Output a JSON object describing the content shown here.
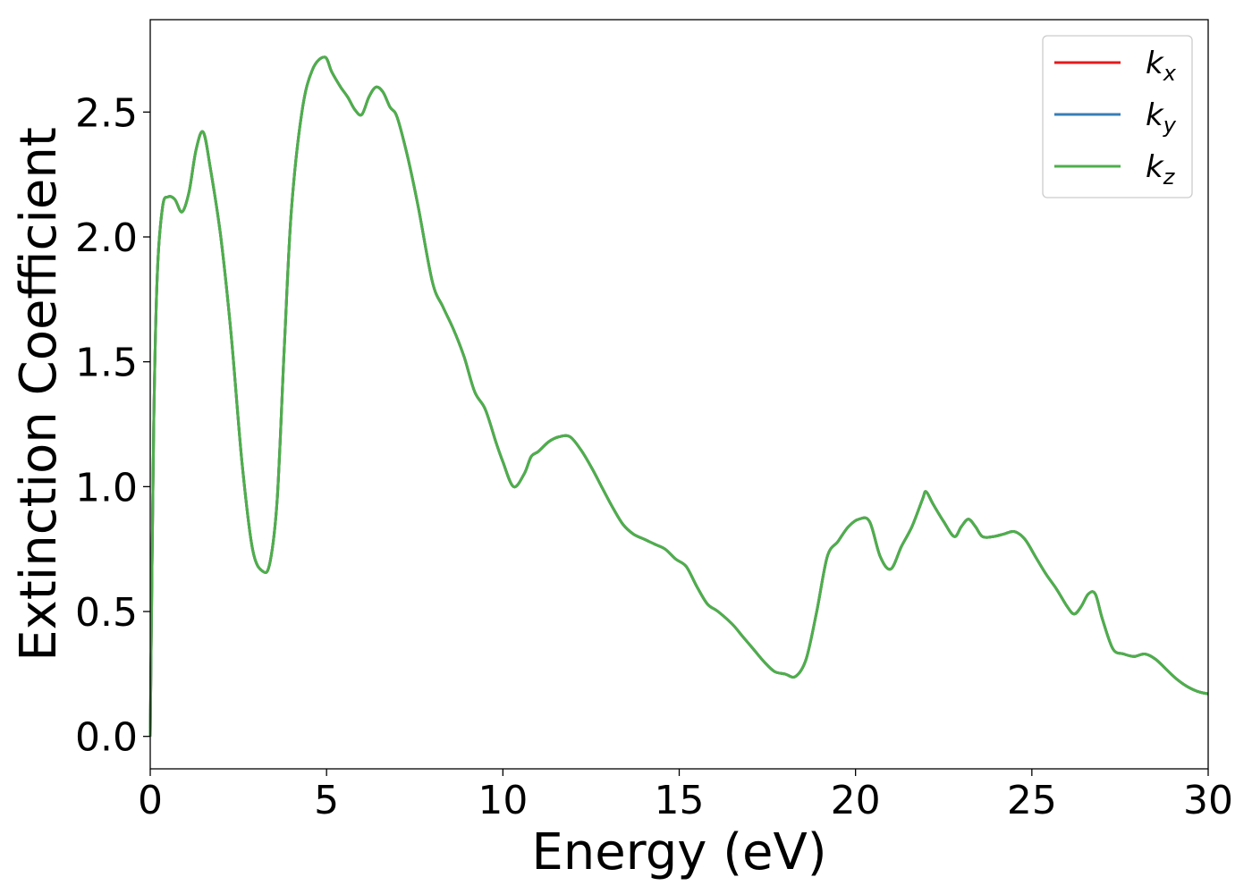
{
  "chart_data": {
    "type": "line",
    "xlabel": "Energy (eV)",
    "ylabel": "Extinction Coefficient",
    "xlim": [
      0,
      30
    ],
    "ylim": [
      -0.13,
      2.87
    ],
    "xticks": [
      0,
      5,
      10,
      15,
      20,
      25,
      30
    ],
    "xtick_labels": [
      "0",
      "5",
      "10",
      "15",
      "20",
      "25",
      "30"
    ],
    "yticks": [
      0.0,
      0.5,
      1.0,
      1.5,
      2.0,
      2.5
    ],
    "ytick_labels": [
      "0.0",
      "0.5",
      "1.0",
      "1.5",
      "2.0",
      "2.5"
    ],
    "grid": false,
    "legend_position": "top-right",
    "series": [
      {
        "name": "k",
        "subscript": "x",
        "color": "#e41a1c"
      },
      {
        "name": "k",
        "subscript": "y",
        "color": "#377eb8"
      },
      {
        "name": "k",
        "subscript": "z",
        "color": "#4daf4a"
      }
    ],
    "x": [
      0,
      0.1,
      0.2,
      0.35,
      0.5,
      0.7,
      0.9,
      1.1,
      1.3,
      1.5,
      1.7,
      2.0,
      2.3,
      2.6,
      2.9,
      3.2,
      3.4,
      3.6,
      3.8,
      4.0,
      4.3,
      4.6,
      4.95,
      5.15,
      5.4,
      5.6,
      5.8,
      6.0,
      6.2,
      6.4,
      6.6,
      6.8,
      7.0,
      7.3,
      7.6,
      8.0,
      8.3,
      8.6,
      8.9,
      9.2,
      9.5,
      9.8,
      10.0,
      10.3,
      10.6,
      10.8,
      11.0,
      11.3,
      11.6,
      11.9,
      12.2,
      12.5,
      12.8,
      13.1,
      13.4,
      13.7,
      14.0,
      14.3,
      14.6,
      14.9,
      15.2,
      15.5,
      15.8,
      16.1,
      16.5,
      16.8,
      17.1,
      17.4,
      17.7,
      18.0,
      18.3,
      18.6,
      18.9,
      19.2,
      19.5,
      19.8,
      20.1,
      20.4,
      20.7,
      21.0,
      21.3,
      21.6,
      21.9,
      22.0,
      22.2,
      22.5,
      22.8,
      23.0,
      23.2,
      23.4,
      23.6,
      23.9,
      24.2,
      24.5,
      24.8,
      25.1,
      25.4,
      25.7,
      26.0,
      26.2,
      26.4,
      26.6,
      26.8,
      27.0,
      27.3,
      27.6,
      27.9,
      28.2,
      28.5,
      28.8,
      29.1,
      29.4,
      29.7,
      30.0
    ],
    "y": [
      0.0,
      1.25,
      1.85,
      2.12,
      2.16,
      2.15,
      2.1,
      2.18,
      2.35,
      2.42,
      2.28,
      2.0,
      1.6,
      1.1,
      0.75,
      0.66,
      0.7,
      0.95,
      1.55,
      2.1,
      2.5,
      2.67,
      2.72,
      2.66,
      2.6,
      2.56,
      2.51,
      2.49,
      2.56,
      2.6,
      2.58,
      2.52,
      2.48,
      2.32,
      2.12,
      1.82,
      1.72,
      1.63,
      1.52,
      1.38,
      1.31,
      1.18,
      1.1,
      1.0,
      1.05,
      1.12,
      1.14,
      1.18,
      1.2,
      1.2,
      1.15,
      1.08,
      1.0,
      0.92,
      0.85,
      0.81,
      0.79,
      0.77,
      0.75,
      0.71,
      0.68,
      0.6,
      0.53,
      0.5,
      0.45,
      0.4,
      0.35,
      0.3,
      0.26,
      0.25,
      0.24,
      0.31,
      0.5,
      0.72,
      0.78,
      0.84,
      0.87,
      0.86,
      0.72,
      0.67,
      0.76,
      0.84,
      0.95,
      0.98,
      0.93,
      0.86,
      0.8,
      0.84,
      0.87,
      0.84,
      0.8,
      0.8,
      0.81,
      0.82,
      0.79,
      0.72,
      0.65,
      0.59,
      0.52,
      0.49,
      0.52,
      0.57,
      0.57,
      0.47,
      0.35,
      0.33,
      0.32,
      0.33,
      0.31,
      0.27,
      0.23,
      0.2,
      0.18,
      0.17
    ]
  }
}
